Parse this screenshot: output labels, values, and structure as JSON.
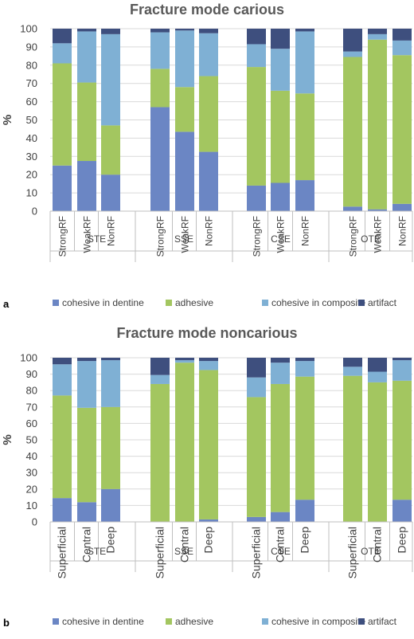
{
  "colors": {
    "cohesive_dentine": "#6b86c4",
    "adhesive": "#a3c660",
    "cohesive_composite": "#7fb0d4",
    "artifact": "#3e4f7e"
  },
  "chart_data": [
    {
      "type": "bar",
      "stacked": true,
      "title": "Fracture mode carious",
      "panel_letter": "a",
      "ylabel": "%",
      "ylim": [
        0,
        100
      ],
      "yticks": [
        "0",
        "10",
        "20",
        "30",
        "40",
        "50",
        "60",
        "70",
        "80",
        "90",
        "100"
      ],
      "legend_position": "bottom",
      "groups": [
        {
          "label": "STE",
          "categories": [
            "StrongRF",
            "WeakRF",
            "NonRF"
          ]
        },
        {
          "label": "SSE",
          "categories": [
            "StrongRF",
            "WeakRF",
            "NonRF"
          ]
        },
        {
          "label": "CSE",
          "categories": [
            "StrongRF",
            "WeakRF",
            "NonRF"
          ]
        },
        {
          "label": "OTE",
          "categories": [
            "StrongRF",
            "WeakRF",
            "NonRF"
          ]
        }
      ],
      "series": [
        {
          "name": "cohesive in dentine",
          "values": [
            25,
            27.5,
            20,
            57,
            43.5,
            32.5,
            14,
            15.5,
            17,
            2.5,
            1,
            4
          ]
        },
        {
          "name": "adhesive",
          "values": [
            56,
            43,
            27,
            21,
            24.5,
            41.5,
            65,
            50.5,
            47.5,
            82,
            93,
            81.5
          ]
        },
        {
          "name": "cohesive in composite",
          "values": [
            11,
            28,
            50,
            20,
            31,
            23.5,
            12.5,
            23,
            34,
            3,
            3,
            8
          ]
        },
        {
          "name": "artifact",
          "values": [
            8,
            1.5,
            3,
            2,
            1,
            2.5,
            8.5,
            11,
            1.5,
            12.5,
            3,
            6.5
          ]
        }
      ]
    },
    {
      "type": "bar",
      "stacked": true,
      "title": "Fracture mode noncarious",
      "panel_letter": "b",
      "ylabel": "%",
      "ylim": [
        0,
        100
      ],
      "yticks": [
        "0",
        "10",
        "20",
        "30",
        "40",
        "50",
        "60",
        "70",
        "80",
        "90",
        "100"
      ],
      "legend_position": "bottom",
      "groups": [
        {
          "label": "STE",
          "categories": [
            "Superficial",
            "Central",
            "Deep"
          ]
        },
        {
          "label": "SSE",
          "categories": [
            "Superficial",
            "Central",
            "Deep"
          ]
        },
        {
          "label": "CSE",
          "categories": [
            "Superficial",
            "Central",
            "Deep"
          ]
        },
        {
          "label": "OTE",
          "categories": [
            "Superficial",
            "Central",
            "Deep"
          ]
        }
      ],
      "series": [
        {
          "name": "cohesive in dentine",
          "values": [
            14.5,
            12,
            20,
            0,
            0,
            1.5,
            3,
            6,
            13.5,
            0,
            0,
            13.5
          ]
        },
        {
          "name": "adhesive",
          "values": [
            62.5,
            57.5,
            50,
            84,
            97,
            91,
            73,
            78,
            75,
            89,
            85,
            72.5
          ]
        },
        {
          "name": "cohesive in composite",
          "values": [
            19,
            28.5,
            28.5,
            5.5,
            1.5,
            5.5,
            12,
            13,
            9.5,
            5.5,
            6.5,
            12.5
          ]
        },
        {
          "name": "artifact",
          "values": [
            4,
            2,
            1.5,
            10.5,
            1.5,
            2,
            12,
            3,
            2,
            5.5,
            8.5,
            1.5
          ]
        }
      ]
    }
  ]
}
